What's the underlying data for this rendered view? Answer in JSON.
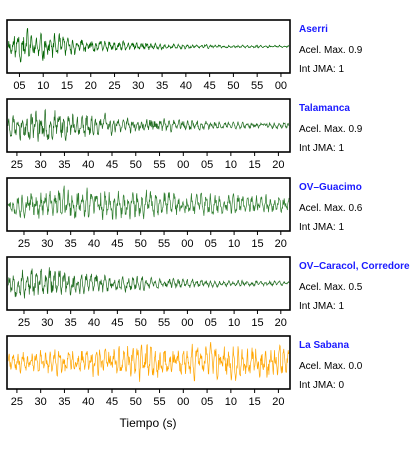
{
  "chart_data": {
    "type": "line",
    "xlabel": "Tiempo (s)",
    "accel_label": "Acel. Max.",
    "int_label": "Int JMA:",
    "panels": [
      {
        "station": "Aserri",
        "acel_max": "0.9",
        "int_jma": "1",
        "color": "#006400",
        "tick_labels": [
          "05",
          "10",
          "15",
          "20",
          "25",
          "30",
          "35",
          "40",
          "45",
          "50",
          "55",
          "00"
        ],
        "first_tick_frac": 0.044,
        "tick_step_frac": 0.084,
        "peak_frac": 0.06,
        "decay": 3.5,
        "floor": 0.08,
        "seed": 11
      },
      {
        "station": "Talamanca",
        "acel_max": "0.9",
        "int_jma": "1",
        "color": "#1f6b1f",
        "tick_labels": [
          "25",
          "30",
          "35",
          "40",
          "45",
          "50",
          "55",
          "00",
          "05",
          "10",
          "15",
          "20"
        ],
        "first_tick_frac": 0.035,
        "tick_step_frac": 0.084,
        "peak_frac": 0.12,
        "decay": 2.2,
        "floor": 0.18,
        "seed": 23
      },
      {
        "station": "OV–Guacimo",
        "acel_max": "0.6",
        "int_jma": "1",
        "color": "#2e7d2e",
        "tick_labels": [
          "25",
          "30",
          "35",
          "40",
          "45",
          "50",
          "55",
          "00",
          "05",
          "10",
          "15",
          "20"
        ],
        "first_tick_frac": 0.06,
        "tick_step_frac": 0.0825,
        "peak_frac": 0.2,
        "decay": 0.9,
        "floor": 0.3,
        "seed": 37
      },
      {
        "station": "OV–Caracol, Corredore",
        "acel_max": "0.5",
        "int_jma": "1",
        "color": "#1f6b1f",
        "tick_labels": [
          "25",
          "30",
          "35",
          "40",
          "45",
          "50",
          "55",
          "00",
          "05",
          "10",
          "15",
          "20"
        ],
        "first_tick_frac": 0.06,
        "tick_step_frac": 0.0825,
        "peak_frac": 0.1,
        "decay": 2.4,
        "floor": 0.12,
        "seed": 53
      },
      {
        "station": "La Sabana",
        "acel_max": "0.0",
        "int_jma": "0",
        "color": "#ffa500",
        "tick_labels": [
          "25",
          "30",
          "35",
          "40",
          "45",
          "50",
          "55",
          "00",
          "05",
          "10",
          "15",
          "20"
        ],
        "first_tick_frac": 0.035,
        "tick_step_frac": 0.084,
        "peak_frac": 0.5,
        "decay": 0.0,
        "floor": 0.75,
        "seed": 71
      }
    ]
  }
}
